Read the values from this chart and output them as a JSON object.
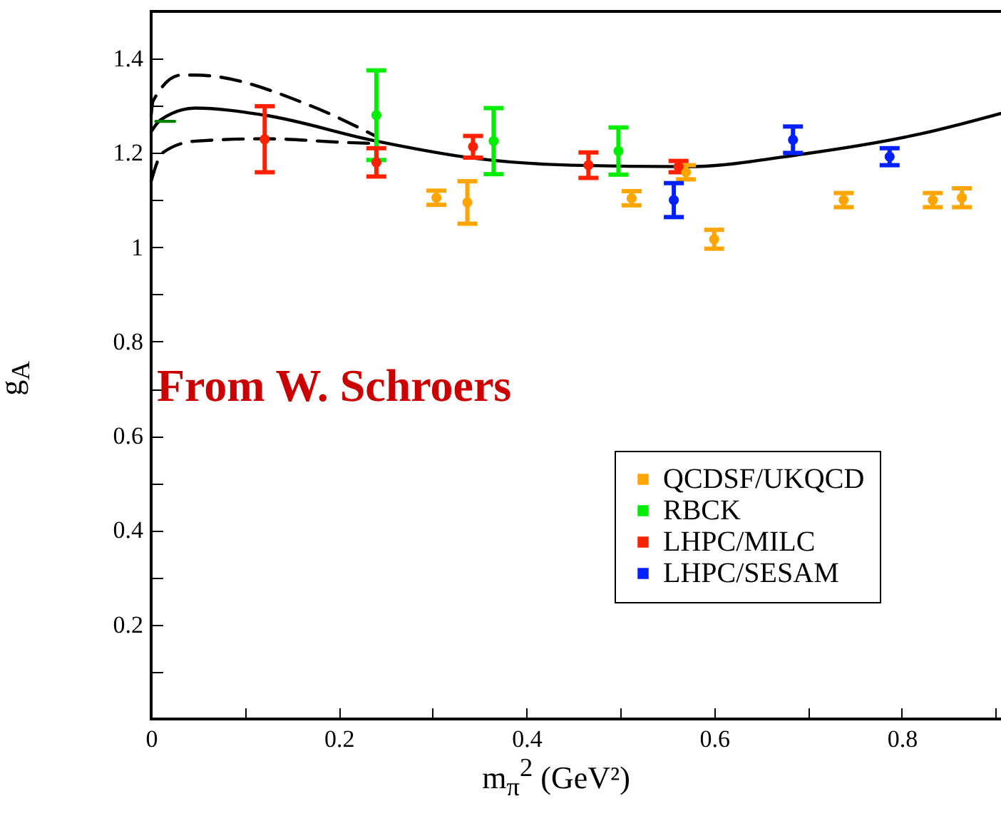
{
  "chart_data": {
    "type": "scatter",
    "xlabel": "m$_{π}$$^{2}$ (GeV²)",
    "ylabel": "g$_{A}$",
    "annotations": [
      "From W.  Schroers"
    ],
    "xlim": [
      0,
      0.93
    ],
    "ylim": [
      0,
      1.5
    ],
    "xticks": [
      0,
      {
        "value": 0.1,
        "label": null
      },
      0.2,
      {
        "value": 0.3,
        "label": null
      },
      0.4,
      {
        "value": 0.5,
        "label": null
      },
      0.6,
      {
        "value": 0.7,
        "label": null
      },
      0.8,
      {
        "value": 0.9,
        "label": null
      }
    ],
    "yticks": [
      {
        "value": 0.1,
        "label": null
      },
      0.2,
      {
        "value": 0.3,
        "label": null
      },
      0.4,
      {
        "value": 0.5,
        "label": null
      },
      0.6,
      {
        "value": 0.7,
        "label": null
      },
      0.8,
      {
        "value": 0.9,
        "label": null
      },
      1,
      {
        "value": 1.1,
        "label": null
      },
      1.2,
      {
        "value": 1.3,
        "label": null
      },
      1.4
    ],
    "grid": false,
    "legend": "bottom right",
    "marker": "circle",
    "series": [
      {
        "type": "line",
        "marker": "none",
        "color": "#000000",
        "line_style": "solid",
        "x": [
          0,
          0.01,
          0.047,
          0.121,
          0.24,
          0.343,
          0.448,
          0.571,
          0.696,
          0.819,
          0.926
        ],
        "values": [
          1.245,
          1.27,
          1.295,
          1.28,
          1.225,
          1.189,
          1.174,
          1.171,
          1.198,
          1.24,
          1.295
        ]
      },
      {
        "type": "line",
        "marker": "none",
        "color": "#000000",
        "line_style": "dashed",
        "x": [
          0,
          0.002,
          0.032,
          0.047,
          0.17,
          0.24
        ],
        "values": [
          1.28,
          1.31,
          1.365,
          1.365,
          1.3,
          1.235
        ]
      },
      {
        "type": "line",
        "marker": "none",
        "color": "#000000",
        "line_style": "dashed",
        "x": [
          0,
          0.012,
          0.047,
          0.121,
          0.21,
          0.24
        ],
        "values": [
          1.14,
          1.2,
          1.225,
          1.23,
          1.222,
          1.22
        ]
      },
      {
        "type": "line",
        "marker": "none",
        "color": "#008000",
        "line_style": "solid",
        "x": [
          0.005,
          0.025
        ],
        "values": [
          1.267,
          1.267
        ]
      },
      {
        "name": "QCDSF/UKQCD",
        "color": "#ffa500",
        "x": [
          0.304,
          0.337,
          0.512,
          0.57,
          0.6,
          0.738,
          0.833,
          0.864
        ],
        "values": [
          1.105,
          1.095,
          1.104,
          1.159,
          1.017,
          1.1,
          1.1,
          1.105
        ],
        "errors": [
          0.015,
          0.045,
          0.015,
          0.015,
          0.02,
          0.015,
          0.015,
          0.02
        ]
      },
      {
        "name": "RBCK",
        "color": "#00ee00",
        "x": [
          0.24,
          0.365,
          0.498
        ],
        "values": [
          1.28,
          1.225,
          1.204
        ],
        "errors": [
          0.095,
          0.07,
          0.05
        ]
      },
      {
        "name": "LHPC/MILC",
        "color": "#ff2000",
        "x": [
          0.121,
          0.24,
          0.343,
          0.466,
          0.562
        ],
        "values": [
          1.229,
          1.18,
          1.213,
          1.174,
          1.171
        ],
        "errors": [
          0.07,
          0.03,
          0.023,
          0.027,
          0.012
        ]
      },
      {
        "name": "LHPC/SESAM",
        "color": "#0020ff",
        "x": [
          0.557,
          0.684,
          0.787
        ],
        "values": [
          1.1,
          1.228,
          1.192
        ],
        "errors": [
          0.036,
          0.028,
          0.018
        ]
      }
    ]
  }
}
